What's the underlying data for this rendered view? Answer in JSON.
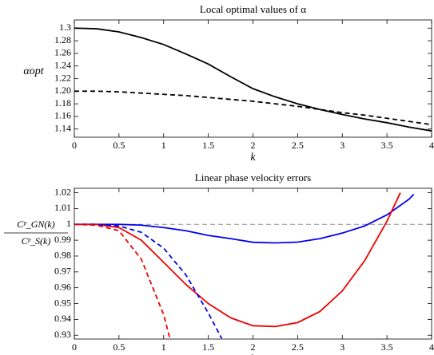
{
  "chart_data": [
    {
      "type": "line",
      "title": "Local optimal values of α",
      "y_label": "αopt",
      "x_label": "k",
      "xlim": [
        0,
        4
      ],
      "xticks": [
        0,
        0.5,
        1,
        1.5,
        2,
        2.5,
        3,
        3.5,
        4
      ],
      "ylim": [
        1.127,
        1.313
      ],
      "yticks": [
        1.14,
        1.16,
        1.18,
        {
          "value": 1.2,
          "label": "1.20"
        },
        1.22,
        1.24,
        1.26,
        1.28,
        1.3
      ],
      "series": [
        {
          "color": "#000000",
          "style": "solid",
          "x": [
            0,
            0.25,
            0.5,
            0.75,
            1,
            1.25,
            1.5,
            1.75,
            2,
            2.25,
            2.5,
            2.75,
            3,
            3.25,
            3.5,
            3.75,
            4
          ],
          "values": [
            1.3,
            1.299,
            1.294,
            1.285,
            1.274,
            1.259,
            1.243,
            1.223,
            1.204,
            1.191,
            1.18,
            1.171,
            1.163,
            1.156,
            1.15,
            1.143,
            1.137
          ]
        },
        {
          "color": "#000000",
          "style": "dashed",
          "x": [
            0,
            0.25,
            0.5,
            0.75,
            1,
            1.25,
            1.5,
            1.75,
            2,
            2.25,
            2.5,
            2.75,
            3,
            3.25,
            3.5,
            3.75,
            4
          ],
          "values": [
            1.2,
            1.2,
            1.199,
            1.197,
            1.195,
            1.193,
            1.19,
            1.187,
            1.184,
            1.18,
            1.176,
            1.171,
            1.166,
            1.162,
            1.157,
            1.152,
            1.147
          ]
        }
      ]
    },
    {
      "type": "line",
      "title": "Linear phase velocity errors",
      "y_label": {
        "numerator": "Cᵖ_GN(k)",
        "denominator": "Cᵖ_S(k)"
      },
      "x_label": "k",
      "xlim": [
        0,
        4
      ],
      "xticks": [
        0,
        0.5,
        1,
        1.5,
        2,
        2.5,
        3,
        3.5,
        4
      ],
      "ylim": [
        0.9276,
        1.0228
      ],
      "yticks": [
        0.93,
        0.94,
        0.95,
        0.96,
        0.97,
        0.98,
        0.99,
        1,
        1.01,
        1.02
      ],
      "reference_line": {
        "value": 1,
        "color": "#888888"
      },
      "series": [
        {
          "color": "#0000ee",
          "style": "solid",
          "x": [
            0,
            0.25,
            0.5,
            0.75,
            1,
            1.25,
            1.5,
            1.75,
            2,
            2.25,
            2.5,
            2.75,
            3,
            3.25,
            3.5,
            3.75,
            3.8
          ],
          "values": [
            1,
            1,
            1,
            0.9995,
            0.998,
            0.996,
            0.993,
            0.991,
            0.9887,
            0.9883,
            0.9888,
            0.991,
            0.9945,
            0.999,
            1.006,
            1.016,
            1.019
          ]
        },
        {
          "color": "#ee0000",
          "style": "solid",
          "x": [
            0,
            0.25,
            0.5,
            0.75,
            1,
            1.25,
            1.5,
            1.75,
            2,
            2.25,
            2.5,
            2.75,
            3,
            3.25,
            3.5,
            3.65
          ],
          "values": [
            1,
            1,
            0.998,
            0.99,
            0.976,
            0.962,
            0.95,
            0.941,
            0.936,
            0.9355,
            0.938,
            0.945,
            0.958,
            0.977,
            1.002,
            1.02
          ]
        },
        {
          "color": "#0000ee",
          "style": "dashed",
          "x": [
            0,
            0.25,
            0.5,
            0.75,
            1,
            1.25,
            1.5,
            1.65
          ],
          "values": [
            1,
            1,
            0.999,
            0.995,
            0.985,
            0.968,
            0.944,
            0.928
          ]
        },
        {
          "color": "#ee0000",
          "style": "dashed",
          "x": [
            0,
            0.25,
            0.5,
            0.75,
            1,
            1.07
          ],
          "values": [
            1,
            0.9995,
            0.996,
            0.978,
            0.943,
            0.928
          ]
        }
      ]
    }
  ]
}
